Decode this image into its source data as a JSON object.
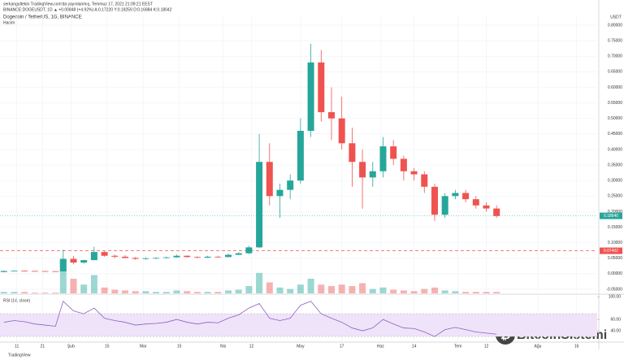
{
  "chart_data": {
    "type": "candlestick",
    "published_by": "serkangultekin TradingView.com'da yayınlanmış, Temmuz 17, 2021 21:09:21 EEST",
    "symbol_line": "BINANCE:DOGEUSDT, 1D ▲ +0.00848 (+4.92%) A:0.17220 Y:0.18259 D:0.16884 K:0.18042",
    "title": "Dogecoin / TetherUS, 1G, BINANCE",
    "volume_label": "Hacim",
    "unit_label": "USDT",
    "rsi_title": "RSI (14, close)",
    "watermark": "BitcoinSistemi",
    "footer": "TradingView",
    "up_color": "#26a69a",
    "down_color": "#ef5350",
    "rsi_color": "#8e5fc1",
    "x": [
      5,
      9,
      13,
      17,
      21,
      25,
      28,
      32,
      36,
      40,
      44,
      48,
      52,
      56,
      60,
      64,
      68,
      72,
      76,
      80,
      84,
      88,
      92,
      96,
      100,
      104,
      108,
      112,
      116,
      120,
      124,
      128,
      132,
      136,
      140,
      144,
      148,
      152,
      156,
      160,
      164,
      168,
      172,
      176,
      180,
      184,
      188,
      192,
      196
    ],
    "open": [
      0.0057,
      0.009,
      0.0097,
      0.009,
      0.0086,
      0.0082,
      0.0076,
      0.048,
      0.036,
      0.044,
      0.07,
      0.058,
      0.055,
      0.051,
      0.048,
      0.05,
      0.051,
      0.053,
      0.058,
      0.054,
      0.052,
      0.055,
      0.054,
      0.061,
      0.066,
      0.085,
      0.36,
      0.25,
      0.27,
      0.3,
      0.46,
      0.68,
      0.52,
      0.5,
      0.42,
      0.36,
      0.31,
      0.33,
      0.41,
      0.37,
      0.33,
      0.32,
      0.28,
      0.19,
      0.25,
      0.26,
      0.24,
      0.22,
      0.21
    ],
    "high": [
      0.01,
      0.011,
      0.0105,
      0.0095,
      0.0092,
      0.0088,
      0.078,
      0.058,
      0.045,
      0.087,
      0.072,
      0.062,
      0.06,
      0.054,
      0.053,
      0.053,
      0.055,
      0.062,
      0.059,
      0.056,
      0.058,
      0.058,
      0.065,
      0.07,
      0.09,
      0.45,
      0.42,
      0.29,
      0.32,
      0.5,
      0.74,
      0.72,
      0.6,
      0.57,
      0.47,
      0.4,
      0.36,
      0.44,
      0.43,
      0.38,
      0.34,
      0.33,
      0.29,
      0.26,
      0.27,
      0.27,
      0.25,
      0.23,
      0.22
    ],
    "low": [
      0.005,
      0.008,
      0.0085,
      0.0082,
      0.0078,
      0.0074,
      0.0074,
      0.03,
      0.033,
      0.043,
      0.055,
      0.05,
      0.05,
      0.045,
      0.045,
      0.047,
      0.049,
      0.052,
      0.052,
      0.05,
      0.051,
      0.052,
      0.053,
      0.06,
      0.064,
      0.083,
      0.22,
      0.18,
      0.24,
      0.29,
      0.44,
      0.49,
      0.43,
      0.4,
      0.28,
      0.21,
      0.28,
      0.31,
      0.35,
      0.3,
      0.3,
      0.26,
      0.17,
      0.18,
      0.24,
      0.23,
      0.21,
      0.2,
      0.18
    ],
    "close": [
      0.009,
      0.0097,
      0.009,
      0.0086,
      0.0082,
      0.0076,
      0.048,
      0.036,
      0.044,
      0.07,
      0.058,
      0.055,
      0.051,
      0.048,
      0.05,
      0.051,
      0.053,
      0.058,
      0.054,
      0.052,
      0.055,
      0.054,
      0.061,
      0.066,
      0.085,
      0.36,
      0.25,
      0.27,
      0.3,
      0.46,
      0.68,
      0.52,
      0.5,
      0.42,
      0.36,
      0.31,
      0.33,
      0.41,
      0.37,
      0.33,
      0.32,
      0.28,
      0.19,
      0.25,
      0.26,
      0.24,
      0.22,
      0.21,
      0.186
    ],
    "volume": [
      2,
      2,
      2,
      1,
      1,
      1,
      45,
      20,
      12,
      25,
      8,
      5,
      4,
      3,
      3,
      2,
      2,
      4,
      3,
      2,
      2,
      2,
      4,
      5,
      10,
      28,
      15,
      8,
      6,
      12,
      20,
      12,
      10,
      12,
      10,
      14,
      6,
      8,
      5,
      4,
      3,
      6,
      8,
      4,
      3,
      2,
      2,
      2,
      2
    ],
    "volume_lim": [
      0,
      100
    ],
    "rsi": [
      55,
      58,
      56,
      52,
      50,
      48,
      92,
      75,
      70,
      80,
      62,
      58,
      55,
      50,
      52,
      53,
      55,
      60,
      55,
      52,
      55,
      54,
      62,
      68,
      80,
      88,
      62,
      58,
      62,
      85,
      92,
      70,
      62,
      55,
      45,
      40,
      45,
      60,
      52,
      45,
      44,
      38,
      30,
      42,
      46,
      42,
      38,
      36,
      34
    ],
    "rsi_lim": [
      21.5,
      103
    ],
    "rsi_band": [
      30,
      70
    ],
    "xlim": [
      3.5,
      235
    ],
    "xticks": [
      {
        "value": 10,
        "label": "11"
      },
      {
        "value": 20,
        "label": "21"
      },
      {
        "value": 31,
        "label": "Şub"
      },
      {
        "value": 45,
        "label": "15"
      },
      {
        "value": 59,
        "label": "Mar"
      },
      {
        "value": 73,
        "label": "15"
      },
      {
        "value": 90,
        "label": "Nis"
      },
      {
        "value": 101,
        "label": "12"
      },
      {
        "value": 120,
        "label": "May"
      },
      {
        "value": 136,
        "label": "17"
      },
      {
        "value": 151,
        "label": "Haz"
      },
      {
        "value": 164,
        "label": "14"
      },
      {
        "value": 181,
        "label": "Tem"
      },
      {
        "value": 192,
        "label": "12"
      },
      {
        "value": 212,
        "label": "Ağu"
      },
      {
        "value": 227,
        "label": "16"
      }
    ],
    "ylim": [
      -0.063,
      0.8287
    ],
    "yticks": [
      {
        "value": 0.8,
        "label": "0.80000"
      },
      {
        "value": 0.75,
        "label": "0.75000"
      },
      {
        "value": 0.7,
        "label": "0.70000"
      },
      {
        "value": 0.65,
        "label": "0.65000"
      },
      {
        "value": 0.6,
        "label": "0.60000"
      },
      {
        "value": 0.55,
        "label": "0.55000"
      },
      {
        "value": 0.5,
        "label": "0.50000"
      },
      {
        "value": 0.45,
        "label": "0.45000"
      },
      {
        "value": 0.4,
        "label": "0.40000"
      },
      {
        "value": 0.35,
        "label": "0.35000"
      },
      {
        "value": 0.3,
        "label": "0.30000"
      },
      {
        "value": 0.25,
        "label": "0.25000"
      },
      {
        "value": 0.2,
        "label": "0.20000"
      },
      {
        "value": 0.15,
        "label": "0.15000"
      },
      {
        "value": 0.1,
        "label": "0.10000"
      },
      {
        "value": 0.05,
        "label": "0.05000"
      },
      {
        "value": 0,
        "label": "0.00000"
      },
      {
        "value": -0.05,
        "label": "-0.05000"
      }
    ],
    "rsi_ticks": [
      {
        "value": 100,
        "label": "100.00"
      },
      {
        "value": 60,
        "label": "60.00"
      },
      {
        "value": 40,
        "label": "40.00"
      }
    ],
    "last_price": {
      "value": 0.1864,
      "label": "0.18640"
    },
    "level_line": {
      "value": 0.07402,
      "label": "0.07402"
    },
    "grid": true
  }
}
